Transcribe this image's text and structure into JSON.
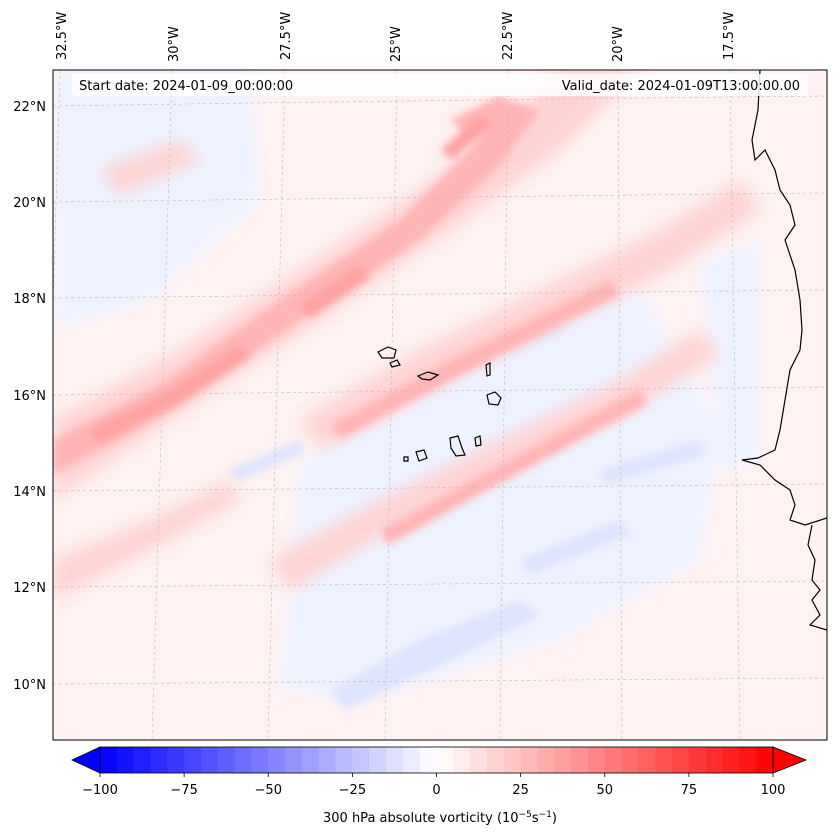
{
  "header": {
    "start_date": "Start date: 2024-01-09_00:00:00",
    "valid_date": "Valid_date: 2024-01-09T13:00:00.00"
  },
  "longitude_ticks": [
    "32.5°W",
    "30°W",
    "27.5°W",
    "25°W",
    "22.5°W",
    "20°W",
    "17.5°W"
  ],
  "latitude_ticks": [
    "22°N",
    "20°N",
    "18°N",
    "16°N",
    "14°N",
    "12°N",
    "10°N"
  ],
  "colorbar": {
    "ticks": [
      "−100",
      "−75",
      "−50",
      "−25",
      "0",
      "25",
      "50",
      "75",
      "100"
    ],
    "label_main": "300 hPa absolute vorticity (10",
    "label_exp1": "−5",
    "label_mid": "s",
    "label_exp2": "−1",
    "label_end": ")",
    "min_color": "#0000ff",
    "mid_color": "#ffffff",
    "max_color": "#ff0000",
    "levels": [
      -100,
      -95,
      -90,
      -85,
      -80,
      -75,
      -70,
      -65,
      -60,
      -55,
      -50,
      -45,
      -40,
      -35,
      -30,
      -25,
      -20,
      -15,
      -10,
      -5,
      0,
      5,
      10,
      15,
      20,
      25,
      30,
      35,
      40,
      45,
      50,
      55,
      60,
      65,
      70,
      75,
      80,
      85,
      90,
      95,
      100
    ]
  },
  "field": {
    "background_color": "#fff2f2",
    "positive_color": "#ffb9b9",
    "strong_positive_color": "#ff9999",
    "negative_color": "#e3e8ff",
    "coast_color": "#000000"
  }
}
